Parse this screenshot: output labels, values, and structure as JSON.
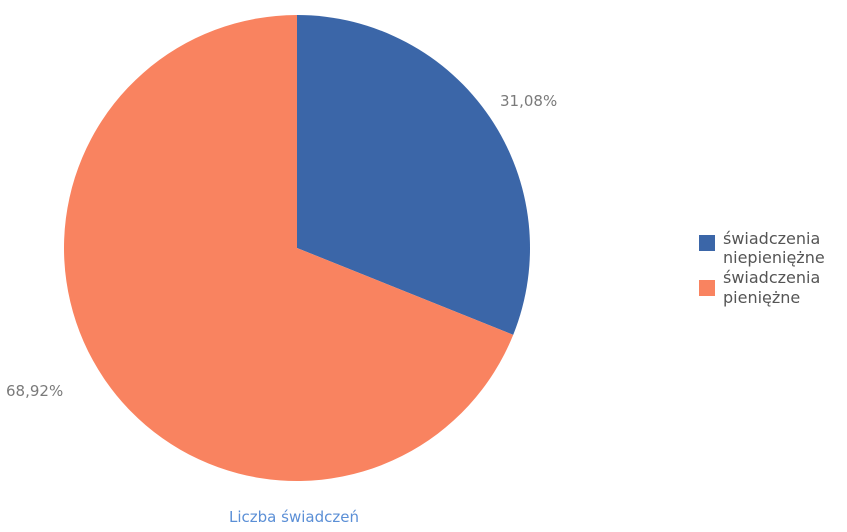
{
  "chart_data": {
    "type": "pie",
    "title": "",
    "caption": "Liczba świadczeń",
    "slices": [
      {
        "label_lines": [
          "świadczenia",
          "niepieniężne"
        ],
        "value": 31.08,
        "value_label": "31,08%",
        "color": "#3b66a8"
      },
      {
        "label_lines": [
          "świadczenia",
          "pieniężne"
        ],
        "value": 68.92,
        "value_label": "68,92%",
        "color": "#f98360"
      }
    ],
    "start_angle_deg": 0,
    "direction": "clockwise",
    "legend_position": "right"
  }
}
